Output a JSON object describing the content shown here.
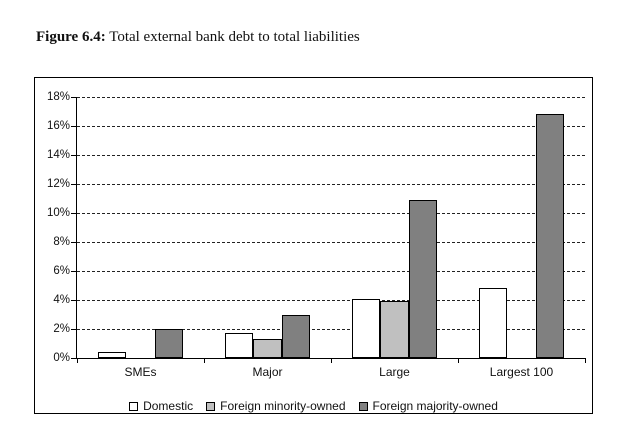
{
  "title": {
    "prefix": "Figure 6.4:",
    "rest": " Total external bank debt to total liabilities"
  },
  "chart_data": {
    "type": "bar",
    "title": "Total external bank debt to total liabilities",
    "categories": [
      "SMEs",
      "Major",
      "Large",
      "Largest 100"
    ],
    "series": [
      {
        "name": "Domestic",
        "color": "#ffffff",
        "values": [
          0.4,
          1.7,
          4.1,
          4.8
        ]
      },
      {
        "name": "Foreign minority-owned",
        "color": "#c0c0c0",
        "values": [
          0.0,
          1.3,
          3.9,
          0.0
        ]
      },
      {
        "name": "Foreign majority-owned",
        "color": "#808080",
        "values": [
          2.0,
          3.0,
          10.9,
          16.8
        ]
      }
    ],
    "xlabel": "",
    "ylabel": "",
    "ylim": [
      0,
      18
    ],
    "ytick_step": 2,
    "ytick_suffix": "%",
    "ytick_labels": [
      "0%",
      "2%",
      "4%",
      "6%",
      "8%",
      "10%",
      "12%",
      "14%",
      "16%",
      "18%"
    ],
    "grid": "horizontal-dashed",
    "legend_position": "bottom-center",
    "bar_border_color": "#000000",
    "axis_color": "#000000"
  }
}
